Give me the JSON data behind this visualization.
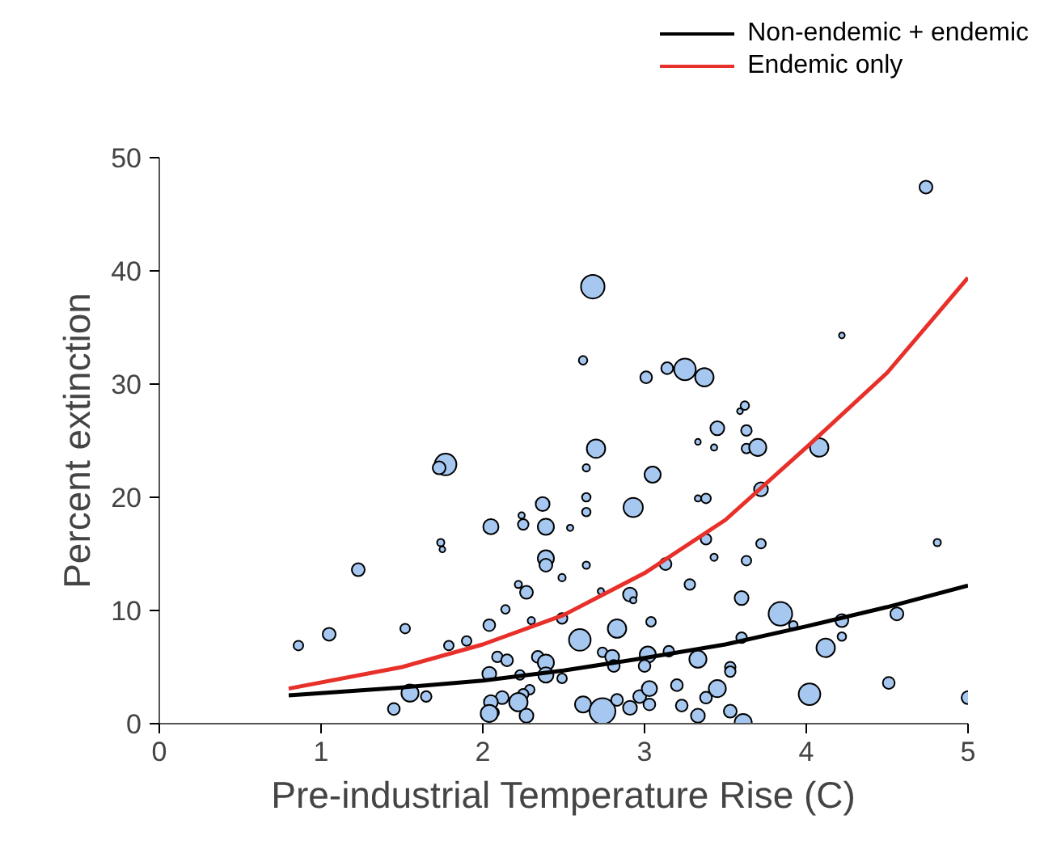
{
  "chart_data": {
    "type": "bubble",
    "xlabel": "Pre-industrial Temperature Rise (C)",
    "ylabel": "Percent extinction",
    "xlim": [
      0,
      5
    ],
    "ylim": [
      0,
      50
    ],
    "xticks": [
      0,
      1,
      2,
      3,
      4,
      5
    ],
    "yticks": [
      0,
      10,
      20,
      30,
      40,
      50
    ],
    "grid": false,
    "legend": "top right",
    "series": [
      {
        "color": "#a6c8f0",
        "x": [
          2.68,
          2.62,
          3.01,
          3.14,
          3.25,
          3.37,
          3.62,
          3.59,
          3.45,
          3.63,
          3.33,
          3.43,
          3.63,
          3.7,
          2.7,
          2.64,
          3.05,
          3.33,
          3.38,
          3.72,
          2.93,
          2.37,
          2.64,
          2.64,
          2.24,
          2.25,
          2.39,
          2.54,
          2.05,
          3.38,
          3.72,
          3.43,
          3.63,
          3.13,
          2.39,
          2.39,
          2.64,
          2.49,
          2.22,
          2.27,
          2.14,
          2.3,
          2.49,
          2.73,
          2.91,
          2.93,
          3.28,
          3.6,
          3.84,
          3.92,
          2.83,
          3.04,
          2.6,
          2.04,
          2.74,
          2.8,
          3.02,
          3.15,
          3.0,
          2.81,
          3.33,
          3.6,
          3.53,
          3.53,
          2.09,
          2.15,
          2.34,
          2.39,
          2.39,
          2.23,
          2.49,
          2.29,
          2.12,
          2.25,
          2.22,
          2.27,
          2.05,
          2.62,
          2.74,
          2.83,
          2.91,
          2.97,
          3.03,
          3.03,
          3.2,
          3.23,
          3.33,
          3.38,
          3.45,
          3.53,
          3.61,
          2.07,
          1.77,
          1.73,
          1.74,
          1.75,
          1.23,
          1.52,
          1.05,
          0.86,
          1.79,
          1.9,
          1.45,
          1.55,
          1.65,
          2.04,
          2.04,
          4.74,
          4.22,
          4.08,
          4.81,
          4.22,
          4.56,
          4.22,
          4.12,
          4.02,
          4.51,
          5.0
        ],
        "values": [
          38.6,
          32.1,
          30.6,
          31.4,
          31.3,
          30.6,
          28.1,
          27.6,
          26.1,
          25.9,
          24.9,
          24.4,
          24.3,
          24.4,
          24.3,
          22.6,
          22.0,
          19.9,
          19.9,
          20.7,
          19.1,
          19.4,
          20.0,
          18.7,
          18.4,
          17.6,
          17.4,
          17.3,
          17.4,
          16.3,
          15.9,
          14.7,
          14.4,
          14.1,
          14.6,
          14.0,
          14.0,
          12.9,
          12.3,
          11.6,
          10.1,
          9.1,
          9.3,
          11.7,
          11.4,
          10.9,
          12.3,
          11.1,
          9.7,
          8.7,
          8.4,
          9.0,
          7.4,
          8.7,
          6.3,
          5.9,
          6.1,
          6.4,
          5.1,
          5.1,
          5.7,
          7.6,
          5.0,
          4.6,
          5.9,
          5.6,
          5.9,
          5.4,
          4.3,
          4.3,
          4.0,
          3.0,
          2.3,
          2.6,
          1.9,
          0.7,
          1.9,
          1.7,
          1.1,
          2.1,
          1.4,
          2.4,
          1.7,
          3.1,
          3.4,
          1.6,
          0.7,
          2.3,
          3.1,
          1.1,
          0.1,
          1.0,
          22.9,
          22.6,
          16.0,
          15.4,
          13.6,
          8.4,
          7.9,
          6.9,
          6.9,
          7.3,
          1.3,
          2.7,
          2.4,
          0.9,
          4.4,
          47.4,
          34.3,
          24.4,
          16.0,
          9.1,
          9.7,
          7.7,
          6.7,
          2.6,
          3.6,
          2.3
        ],
        "sizes": [
          0.83,
          0.11,
          0.21,
          0.21,
          0.7,
          0.51,
          0.11,
          0.05,
          0.29,
          0.17,
          0.05,
          0.06,
          0.14,
          0.44,
          0.51,
          0.08,
          0.39,
          0.06,
          0.14,
          0.29,
          0.56,
          0.29,
          0.11,
          0.11,
          0.06,
          0.17,
          0.39,
          0.06,
          0.35,
          0.17,
          0.14,
          0.08,
          0.14,
          0.21,
          0.39,
          0.25,
          0.08,
          0.08,
          0.08,
          0.25,
          0.11,
          0.08,
          0.17,
          0.06,
          0.29,
          0.06,
          0.17,
          0.29,
          0.83,
          0.11,
          0.51,
          0.14,
          0.7,
          0.21,
          0.14,
          0.29,
          0.39,
          0.17,
          0.21,
          0.21,
          0.44,
          0.17,
          0.17,
          0.17,
          0.17,
          0.21,
          0.21,
          0.39,
          0.35,
          0.14,
          0.14,
          0.14,
          0.25,
          0.17,
          0.51,
          0.29,
          0.29,
          0.39,
          1,
          0.21,
          0.29,
          0.25,
          0.21,
          0.35,
          0.21,
          0.21,
          0.29,
          0.21,
          0.44,
          0.25,
          0.44,
          0.14,
          0.7,
          0.25,
          0.08,
          0.05,
          0.25,
          0.14,
          0.25,
          0.14,
          0.14,
          0.14,
          0.21,
          0.44,
          0.17,
          0.44,
          0.29,
          0.25,
          0.05,
          0.51,
          0.08,
          0.25,
          0.25,
          0.11,
          0.51,
          0.7,
          0.21,
          0.25
        ]
      },
      {
        "type": "line",
        "name": "Non-endemic + endemic",
        "color": "#000000",
        "x": [
          0.8,
          1.5,
          2,
          2.5,
          3,
          3.5,
          4,
          4.5,
          5
        ],
        "values": [
          2.5,
          3.2,
          3.8,
          4.7,
          5.8,
          7.0,
          8.6,
          10.3,
          12.2
        ]
      },
      {
        "type": "line",
        "name": "Endemic only",
        "color": "#e8302a",
        "x": [
          0.8,
          1.5,
          2,
          2.5,
          3,
          3.5,
          4,
          4.5,
          5
        ],
        "values": [
          3.1,
          5.0,
          7.0,
          9.6,
          13.3,
          18.0,
          24.4,
          31.0,
          39.4
        ]
      }
    ]
  }
}
